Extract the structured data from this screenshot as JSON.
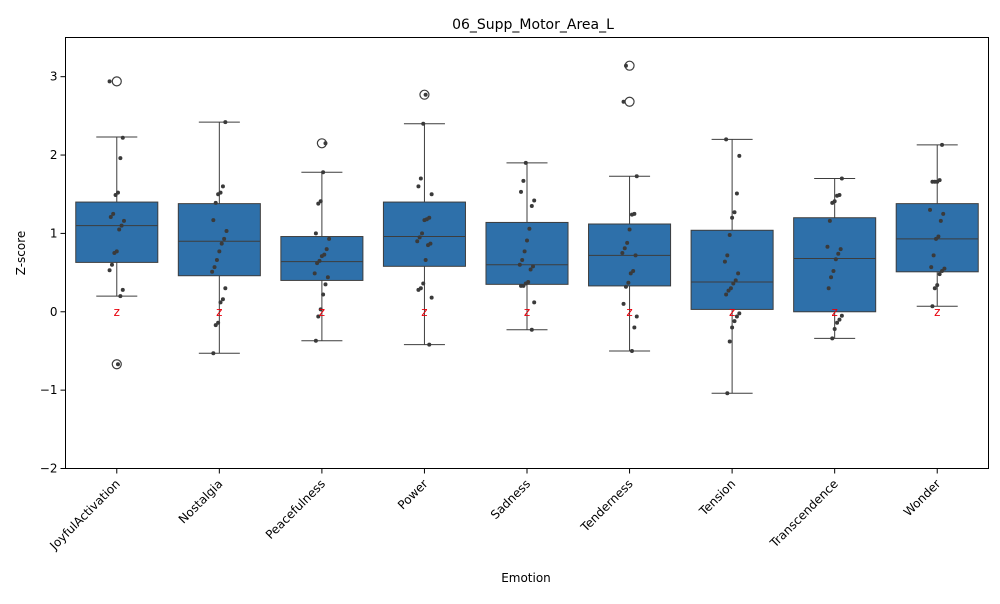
{
  "chart_data": {
    "type": "box",
    "title": "06_Supp_Motor_Area_L",
    "xlabel": "Emotion",
    "ylabel": "Z-score",
    "ylim": [
      -2,
      3.5
    ],
    "yticks": [
      -2,
      -1,
      0,
      1,
      2,
      3
    ],
    "ytick_labels": [
      "−2",
      "−1",
      "0",
      "1",
      "2",
      "3"
    ],
    "box_color": "#2e70aa",
    "point_color": "#3a3a3a",
    "marker_color": "#e8000b",
    "marker_label": "z",
    "marker_value": 0,
    "categories": [
      "JoyfulActivation",
      "Nostalgia",
      "Peacefulness",
      "Power",
      "Sadness",
      "Tenderness",
      "Tension",
      "Transcendence",
      "Wonder"
    ],
    "boxes": [
      {
        "whisker_low": 0.2,
        "q1": 0.63,
        "median": 1.1,
        "q3": 1.4,
        "whisker_high": 2.23,
        "outliers": [
          2.94,
          -0.67
        ]
      },
      {
        "whisker_low": -0.53,
        "q1": 0.46,
        "median": 0.9,
        "q3": 1.38,
        "whisker_high": 2.42,
        "outliers": []
      },
      {
        "whisker_low": -0.37,
        "q1": 0.4,
        "median": 0.64,
        "q3": 0.96,
        "whisker_high": 1.78,
        "outliers": [
          2.15
        ]
      },
      {
        "whisker_low": -0.42,
        "q1": 0.58,
        "median": 0.96,
        "q3": 1.4,
        "whisker_high": 2.4,
        "outliers": [
          2.77
        ]
      },
      {
        "whisker_low": -0.23,
        "q1": 0.35,
        "median": 0.6,
        "q3": 1.14,
        "whisker_high": 1.9,
        "outliers": []
      },
      {
        "whisker_low": -0.5,
        "q1": 0.33,
        "median": 0.72,
        "q3": 1.12,
        "whisker_high": 1.73,
        "outliers": [
          3.14,
          2.68
        ]
      },
      {
        "whisker_low": -1.04,
        "q1": 0.03,
        "median": 0.38,
        "q3": 1.04,
        "whisker_high": 2.2,
        "outliers": []
      },
      {
        "whisker_low": -0.34,
        "q1": 0.0,
        "median": 0.68,
        "q3": 1.2,
        "whisker_high": 1.7,
        "outliers": []
      },
      {
        "whisker_low": 0.07,
        "q1": 0.51,
        "median": 0.93,
        "q3": 1.38,
        "whisker_high": 2.13,
        "outliers": []
      }
    ],
    "points": [
      [
        2.94,
        2.22,
        1.96,
        1.52,
        1.49,
        1.25,
        1.21,
        1.16,
        1.1,
        1.05,
        0.77,
        0.75,
        0.6,
        0.53,
        0.28,
        0.2,
        -0.67
      ],
      [
        2.42,
        1.6,
        1.52,
        1.5,
        1.39,
        1.17,
        1.03,
        0.93,
        0.87,
        0.77,
        0.66,
        0.57,
        0.51,
        0.3,
        0.16,
        0.12,
        -0.14,
        -0.17,
        -0.53
      ],
      [
        2.15,
        1.78,
        1.41,
        1.38,
        1.0,
        0.93,
        0.8,
        0.73,
        0.71,
        0.65,
        0.62,
        0.49,
        0.44,
        0.35,
        0.22,
        0.03,
        -0.06,
        -0.37
      ],
      [
        2.77,
        2.4,
        1.7,
        1.6,
        1.5,
        1.2,
        1.18,
        1.17,
        1.0,
        0.95,
        0.9,
        0.87,
        0.85,
        0.66,
        0.36,
        0.3,
        0.28,
        0.18,
        -0.42
      ],
      [
        1.9,
        1.67,
        1.53,
        1.42,
        1.35,
        1.06,
        0.91,
        0.77,
        0.66,
        0.6,
        0.58,
        0.54,
        0.38,
        0.36,
        0.33,
        0.33,
        0.12,
        -0.23
      ],
      [
        3.14,
        2.68,
        1.73,
        1.25,
        1.24,
        1.05,
        0.88,
        0.81,
        0.75,
        0.72,
        0.52,
        0.49,
        0.37,
        0.32,
        0.1,
        -0.06,
        -0.2,
        -0.5
      ],
      [
        2.2,
        1.99,
        1.51,
        1.27,
        1.2,
        0.98,
        0.72,
        0.64,
        0.49,
        0.4,
        0.36,
        0.3,
        0.27,
        0.22,
        -0.02,
        -0.06,
        -0.12,
        -0.2,
        -0.38,
        -1.04
      ],
      [
        1.7,
        1.49,
        1.48,
        1.41,
        1.39,
        1.16,
        0.83,
        0.8,
        0.74,
        0.67,
        0.52,
        0.44,
        0.3,
        -0.05,
        -0.1,
        -0.14,
        -0.22,
        -0.34
      ],
      [
        2.13,
        1.68,
        1.66,
        1.66,
        1.66,
        1.3,
        1.25,
        1.16,
        0.96,
        0.93,
        0.72,
        0.57,
        0.55,
        0.52,
        0.48,
        0.34,
        0.3,
        0.07
      ]
    ]
  }
}
